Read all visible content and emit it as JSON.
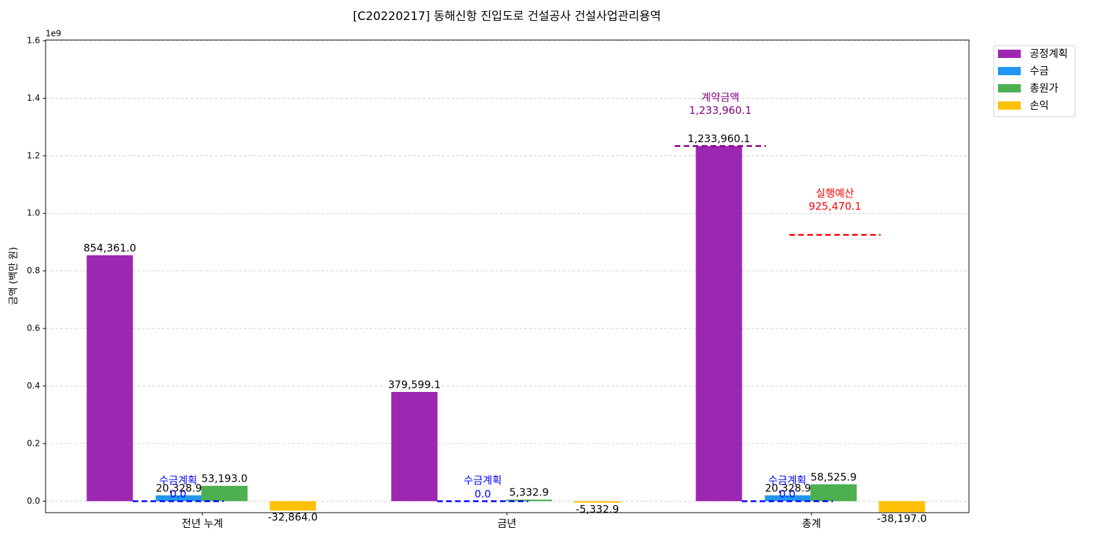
{
  "chart_data": {
    "type": "bar",
    "title": "[C20220217] 동해신항 진입도로 건설공사 건설사업관리용역",
    "y_label": "금액 (백만 원)",
    "y_offset_label": "1e9",
    "categories": [
      "전년 누계",
      "금년",
      "총계"
    ],
    "series": [
      {
        "name": "공정계획",
        "color": "#9c27b0",
        "values": [
          854361000,
          379599100,
          1233960100
        ],
        "value_labels": [
          "854,361.0",
          "379,599.1",
          "1,233,960.1"
        ]
      },
      {
        "name": "수금",
        "color": "#2196f3",
        "values": [
          20328900,
          null,
          20328900
        ],
        "value_labels": [
          "20,328.9",
          null,
          "20,328.9"
        ]
      },
      {
        "name": "총원가",
        "color": "#4caf50",
        "values": [
          53193000,
          5332900,
          58525900
        ],
        "value_labels": [
          "53,193.0",
          "5,332.9",
          "58,525.9"
        ]
      },
      {
        "name": "손익",
        "color": "#ffc107",
        "values": [
          -32864000,
          -5332900,
          -38197000
        ],
        "value_labels": [
          "-32,864.0",
          "-5,332.9",
          "-38,197.0"
        ]
      }
    ],
    "plan_lines": [
      {
        "name": "수금계획",
        "category": 0,
        "value": 0,
        "label": "0.0",
        "color": "#0000ff"
      },
      {
        "name": "수금계획",
        "category": 1,
        "value": 0,
        "label": "0.0",
        "color": "#0000ff"
      },
      {
        "name": "수금계획",
        "category": 2,
        "value": 0,
        "label": "0.0",
        "color": "#0000ff"
      }
    ],
    "reference_lines": [
      {
        "name": "계약금액",
        "category": 2,
        "value": 1233960100,
        "label": "1,233,960.1",
        "color": "#800080"
      },
      {
        "name": "실행예산",
        "category": 2,
        "value": 925470100,
        "label": "925,470.1",
        "color": "#ff0000"
      }
    ],
    "ylim": [
      -40000000,
      1600000000
    ],
    "yticks": [
      {
        "value": 0,
        "label": "0.0"
      },
      {
        "value": 200000000,
        "label": "0.2"
      },
      {
        "value": 400000000,
        "label": "0.4"
      },
      {
        "value": 600000000,
        "label": "0.6"
      },
      {
        "value": 800000000,
        "label": "0.8"
      },
      {
        "value": 1000000000,
        "label": "1.0"
      },
      {
        "value": 1200000000,
        "label": "1.2"
      },
      {
        "value": 1400000000,
        "label": "1.4"
      },
      {
        "value": 1600000000,
        "label": "1.6"
      }
    ],
    "grid": true,
    "legend": "upper right outside"
  }
}
